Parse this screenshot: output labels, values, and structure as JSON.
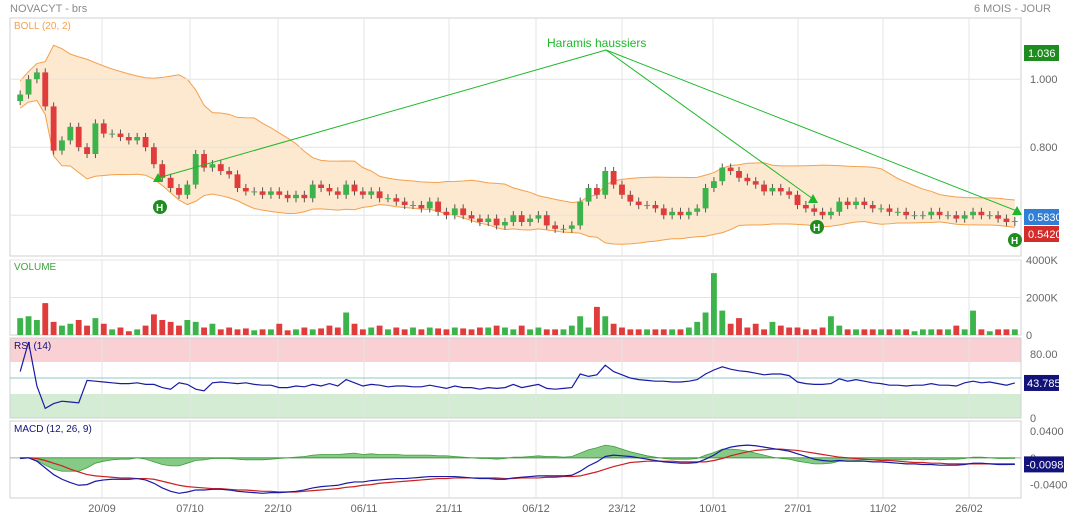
{
  "header": {
    "symbol": "NOVACYT - brs",
    "period": "6 MOIS - JOUR"
  },
  "colors": {
    "up": "#3cb44b",
    "down": "#e03c3c",
    "boll_band": "#f5a04a",
    "boll_fill": "#fde8d0",
    "annotation": "#1db82a",
    "rsi_line": "#1a1aa6",
    "macd_line": "#1a1aa6",
    "signal_line": "#cc1f1f",
    "hist_fill": "#5cb85c",
    "rsi_over": "#f9d0d4",
    "rsi_under": "#d4ecd4",
    "label_green": "#1e8c1e",
    "label_blue": "#2f7fd6",
    "label_red": "#d42b2b",
    "label_navy": "#12127a"
  },
  "chart_data": [
    {
      "panel": "price",
      "type": "candlestick",
      "indicator_label": "BOLL (20, 2)",
      "y_ticks": [
        "1.000",
        "0.800",
        "0.600"
      ],
      "ylim": [
        0.48,
        1.18
      ],
      "x_ticks": [
        "20/09",
        "07/10",
        "22/10",
        "06/11",
        "21/11",
        "06/12",
        "23/12",
        "10/01",
        "27/01",
        "11/02",
        "26/02"
      ],
      "value_labels": {
        "boll_upper": "1.036",
        "last": "0.5830",
        "boll_lower": "0.5420"
      },
      "annotation": {
        "text": "Haramis haussiers",
        "marker": "H"
      },
      "closes": [
        0.955,
        1.0,
        1.02,
        0.92,
        0.79,
        0.82,
        0.86,
        0.8,
        0.78,
        0.87,
        0.84,
        0.84,
        0.83,
        0.82,
        0.83,
        0.8,
        0.75,
        0.71,
        0.68,
        0.66,
        0.69,
        0.78,
        0.74,
        0.75,
        0.73,
        0.72,
        0.68,
        0.67,
        0.67,
        0.66,
        0.67,
        0.66,
        0.65,
        0.66,
        0.65,
        0.69,
        0.68,
        0.67,
        0.66,
        0.69,
        0.67,
        0.66,
        0.67,
        0.65,
        0.65,
        0.64,
        0.63,
        0.63,
        0.62,
        0.64,
        0.61,
        0.6,
        0.62,
        0.6,
        0.59,
        0.58,
        0.59,
        0.57,
        0.58,
        0.6,
        0.58,
        0.59,
        0.6,
        0.57,
        0.56,
        0.56,
        0.57,
        0.64,
        0.68,
        0.66,
        0.73,
        0.69,
        0.66,
        0.64,
        0.63,
        0.63,
        0.62,
        0.6,
        0.61,
        0.6,
        0.61,
        0.62,
        0.68,
        0.7,
        0.74,
        0.73,
        0.71,
        0.7,
        0.69,
        0.67,
        0.68,
        0.67,
        0.66,
        0.63,
        0.62,
        0.61,
        0.6,
        0.61,
        0.64,
        0.63,
        0.64,
        0.63,
        0.62,
        0.62,
        0.61,
        0.61,
        0.6,
        0.6,
        0.6,
        0.61,
        0.6,
        0.6,
        0.59,
        0.6,
        0.61,
        0.6,
        0.6,
        0.59,
        0.58,
        0.583
      ]
    },
    {
      "panel": "volume",
      "type": "bar",
      "indicator_label": "VOLUME",
      "y_ticks": [
        "4000K",
        "2000K",
        "0"
      ],
      "ylim": [
        0,
        4000
      ],
      "values": [
        900,
        1000,
        800,
        1700,
        700,
        500,
        600,
        800,
        500,
        900,
        600,
        300,
        400,
        200,
        300,
        500,
        1100,
        800,
        700,
        500,
        800,
        700,
        400,
        600,
        300,
        400,
        300,
        350,
        250,
        300,
        300,
        600,
        250,
        300,
        400,
        300,
        350,
        500,
        400,
        1200,
        600,
        300,
        400,
        500,
        300,
        400,
        300,
        400,
        300,
        400,
        350,
        300,
        400,
        350,
        300,
        400,
        400,
        500,
        400,
        300,
        500,
        300,
        400,
        300,
        300,
        300,
        500,
        1000,
        400,
        1500,
        1000,
        600,
        400,
        300,
        300,
        300,
        300,
        300,
        300,
        300,
        400,
        700,
        1200,
        3300,
        1300,
        600,
        900,
        400,
        600,
        300,
        700,
        500,
        400,
        400,
        300,
        300,
        400,
        1000,
        500,
        300,
        300,
        300,
        300,
        300,
        300,
        300,
        300,
        200,
        300,
        300,
        300,
        300,
        500,
        300,
        1300,
        300,
        200,
        300,
        300,
        300
      ]
    },
    {
      "panel": "rsi",
      "type": "line",
      "indicator_label": "RSI (14)",
      "y_ticks": [
        "80.00",
        "40.00",
        "0"
      ],
      "ylim": [
        0,
        100
      ],
      "value_label": "43.785",
      "values": [
        58,
        95,
        40,
        12,
        18,
        21,
        20,
        19,
        47,
        46,
        45,
        44,
        43,
        43,
        44,
        42,
        42,
        38,
        36,
        44,
        42,
        36,
        34,
        44,
        45,
        44,
        43,
        44,
        42,
        41,
        41,
        38,
        38,
        40,
        39,
        42,
        40,
        43,
        40,
        48,
        44,
        40,
        42,
        41,
        39,
        40,
        40,
        39,
        39,
        41,
        39,
        37,
        40,
        38,
        38,
        36,
        38,
        37,
        38,
        42,
        38,
        40,
        42,
        37,
        36,
        37,
        38,
        55,
        52,
        54,
        66,
        58,
        54,
        50,
        48,
        47,
        46,
        46,
        45,
        45,
        46,
        48,
        55,
        60,
        64,
        61,
        59,
        58,
        56,
        54,
        55,
        55,
        53,
        45,
        43,
        42,
        42,
        43,
        49,
        46,
        48,
        46,
        44,
        43,
        41,
        41,
        40,
        41,
        41,
        43,
        41,
        41,
        40,
        44,
        46,
        44,
        45,
        43,
        41,
        43.785
      ]
    },
    {
      "panel": "macd",
      "type": "line",
      "indicator_label": "MACD (12, 26, 9)",
      "y_ticks": [
        "0.0400",
        "0",
        "-0.0400"
      ],
      "ylim": [
        -0.06,
        0.055
      ],
      "value_label": "-0.0098",
      "macd": [
        -0.001,
        0.0,
        -0.005,
        -0.015,
        -0.025,
        -0.032,
        -0.037,
        -0.041,
        -0.04,
        -0.035,
        -0.033,
        -0.032,
        -0.032,
        -0.032,
        -0.031,
        -0.033,
        -0.038,
        -0.045,
        -0.05,
        -0.053,
        -0.051,
        -0.048,
        -0.048,
        -0.047,
        -0.047,
        -0.048,
        -0.05,
        -0.051,
        -0.052,
        -0.053,
        -0.052,
        -0.052,
        -0.051,
        -0.05,
        -0.048,
        -0.045,
        -0.043,
        -0.042,
        -0.041,
        -0.038,
        -0.036,
        -0.036,
        -0.034,
        -0.033,
        -0.032,
        -0.031,
        -0.031,
        -0.03,
        -0.029,
        -0.028,
        -0.028,
        -0.028,
        -0.028,
        -0.029,
        -0.03,
        -0.031,
        -0.031,
        -0.032,
        -0.032,
        -0.03,
        -0.029,
        -0.028,
        -0.027,
        -0.027,
        -0.027,
        -0.027,
        -0.026,
        -0.02,
        -0.012,
        -0.006,
        0.002,
        0.004,
        0.003,
        0.002,
        0.0,
        -0.002,
        -0.004,
        -0.006,
        -0.007,
        -0.008,
        -0.008,
        -0.007,
        -0.002,
        0.004,
        0.012,
        0.016,
        0.018,
        0.019,
        0.018,
        0.016,
        0.014,
        0.012,
        0.01,
        0.006,
        0.002,
        -0.002,
        -0.004,
        -0.005,
        -0.004,
        -0.005,
        -0.005,
        -0.005,
        -0.006,
        -0.006,
        -0.007,
        -0.008,
        -0.009,
        -0.009,
        -0.01,
        -0.01,
        -0.011,
        -0.011,
        -0.011,
        -0.01,
        -0.008,
        -0.008,
        -0.009,
        -0.01,
        -0.01,
        -0.0098
      ],
      "signal": [
        0.0,
        0.0,
        -0.001,
        -0.004,
        -0.008,
        -0.012,
        -0.017,
        -0.021,
        -0.025,
        -0.027,
        -0.028,
        -0.029,
        -0.03,
        -0.03,
        -0.031,
        -0.031,
        -0.032,
        -0.035,
        -0.038,
        -0.041,
        -0.043,
        -0.044,
        -0.045,
        -0.046,
        -0.046,
        -0.047,
        -0.048,
        -0.048,
        -0.049,
        -0.05,
        -0.05,
        -0.051,
        -0.051,
        -0.051,
        -0.05,
        -0.049,
        -0.048,
        -0.047,
        -0.046,
        -0.044,
        -0.043,
        -0.041,
        -0.04,
        -0.038,
        -0.037,
        -0.036,
        -0.035,
        -0.034,
        -0.033,
        -0.032,
        -0.031,
        -0.031,
        -0.03,
        -0.03,
        -0.03,
        -0.03,
        -0.03,
        -0.03,
        -0.031,
        -0.031,
        -0.03,
        -0.03,
        -0.03,
        -0.029,
        -0.029,
        -0.028,
        -0.028,
        -0.027,
        -0.024,
        -0.021,
        -0.017,
        -0.013,
        -0.01,
        -0.007,
        -0.006,
        -0.005,
        -0.005,
        -0.005,
        -0.005,
        -0.006,
        -0.006,
        -0.006,
        -0.006,
        -0.004,
        -0.001,
        0.003,
        0.006,
        0.009,
        0.011,
        0.012,
        0.013,
        0.013,
        0.012,
        0.011,
        0.009,
        0.007,
        0.005,
        0.003,
        0.001,
        0.0,
        -0.001,
        -0.002,
        -0.003,
        -0.004,
        -0.004,
        -0.005,
        -0.006,
        -0.007,
        -0.007,
        -0.008,
        -0.008,
        -0.009,
        -0.009,
        -0.009,
        -0.009,
        -0.009,
        -0.009,
        -0.009,
        -0.009,
        -0.009
      ]
    }
  ]
}
